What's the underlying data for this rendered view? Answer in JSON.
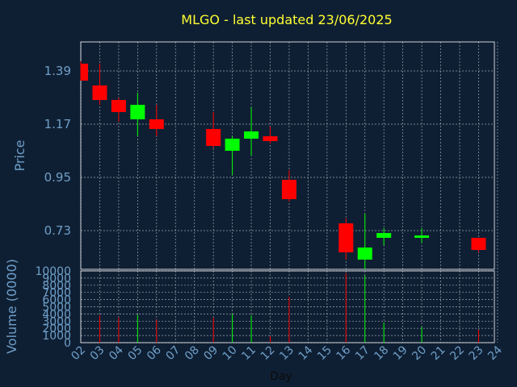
{
  "chart_data": {
    "type": "candlestick",
    "title": "MLGO - last updated 23/06/2025",
    "xlabel": "Day",
    "ylabel": "Price",
    "volume_label": "Volume (0000)",
    "price_ylim": [
      0.57,
      1.51
    ],
    "price_ticks": [
      "0.73",
      "0.95",
      "1.17",
      "1.39"
    ],
    "volume_ylim": [
      0,
      10000
    ],
    "volume_ticks": [
      "0",
      "1000",
      "2000",
      "3000",
      "4000",
      "5000",
      "6000",
      "7000",
      "8000",
      "9000",
      "10000"
    ],
    "x_ticks": [
      "02",
      "03",
      "04",
      "05",
      "06",
      "07",
      "08",
      "09",
      "10",
      "11",
      "12",
      "13",
      "14",
      "15",
      "16",
      "17",
      "18",
      "19",
      "20",
      "21",
      "22",
      "23",
      "24"
    ],
    "grid": true,
    "candles": [
      {
        "day": "02",
        "open": 1.42,
        "high": 1.43,
        "low": 1.35,
        "close": 1.35,
        "volume": 0
      },
      {
        "day": "03",
        "open": 1.33,
        "high": 1.42,
        "low": 1.25,
        "close": 1.27,
        "volume": 3800
      },
      {
        "day": "04",
        "open": 1.27,
        "high": 1.28,
        "low": 1.18,
        "close": 1.22,
        "volume": 3500
      },
      {
        "day": "05",
        "open": 1.19,
        "high": 1.3,
        "low": 1.12,
        "close": 1.25,
        "volume": 3900
      },
      {
        "day": "06",
        "open": 1.19,
        "high": 1.25,
        "low": 1.12,
        "close": 1.15,
        "volume": 3200
      },
      {
        "day": "09",
        "open": 1.15,
        "high": 1.22,
        "low": 1.07,
        "close": 1.08,
        "volume": 3500
      },
      {
        "day": "10",
        "open": 1.06,
        "high": 1.12,
        "low": 0.96,
        "close": 1.11,
        "volume": 4000
      },
      {
        "day": "11",
        "open": 1.11,
        "high": 1.24,
        "low": 1.04,
        "close": 1.14,
        "volume": 3800
      },
      {
        "day": "12",
        "open": 1.12,
        "high": 1.16,
        "low": 1.09,
        "close": 1.1,
        "volume": 900
      },
      {
        "day": "13",
        "open": 0.94,
        "high": 0.98,
        "low": 0.85,
        "close": 0.86,
        "volume": 6400
      },
      {
        "day": "16",
        "open": 0.76,
        "high": 0.78,
        "low": 0.61,
        "close": 0.64,
        "volume": 9700
      },
      {
        "day": "17",
        "open": 0.61,
        "high": 0.8,
        "low": 0.57,
        "close": 0.66,
        "volume": 9400
      },
      {
        "day": "18",
        "open": 0.7,
        "high": 0.74,
        "low": 0.67,
        "close": 0.72,
        "volume": 2800
      },
      {
        "day": "20",
        "open": 0.7,
        "high": 0.74,
        "low": 0.68,
        "close": 0.71,
        "volume": 2200
      },
      {
        "day": "23",
        "open": 0.7,
        "high": 0.7,
        "low": 0.64,
        "close": 0.65,
        "volume": 1800
      }
    ]
  },
  "colors": {
    "background": "#0f1f33",
    "plot_border": "#ffffff",
    "grid": "#9aa4b2",
    "title": "#ffff33",
    "axis_text": "#6f9fc8",
    "up": "#00ff00",
    "down": "#ff0000"
  }
}
